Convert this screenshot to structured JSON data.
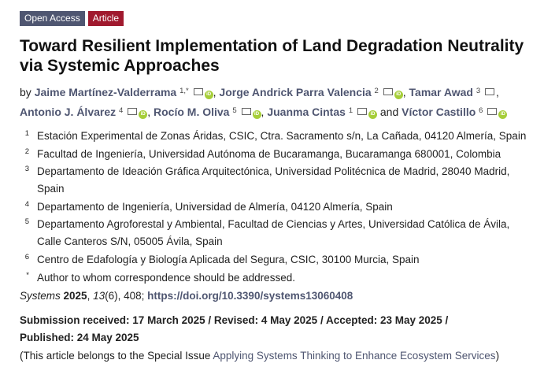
{
  "badges": {
    "open_access": "Open Access",
    "article": "Article"
  },
  "title": "Toward Resilient Implementation of Land Degradation Neutrality via Systemic Approaches",
  "authors_prefix": "by",
  "authors": [
    {
      "name": "Jaime Martínez-Valderrama",
      "sup": "1,*",
      "orcid": true
    },
    {
      "name": "Jorge Andrick Parra Valencia",
      "sup": "2",
      "orcid": true
    },
    {
      "name": "Tamar Awad",
      "sup": "3",
      "orcid": false
    },
    {
      "name": "Antonio J. Álvarez",
      "sup": "4",
      "orcid": true
    },
    {
      "name": "Rocío M. Oliva",
      "sup": "5",
      "orcid": true
    },
    {
      "name": "Juanma Cintas",
      "sup": "1",
      "orcid": true
    },
    {
      "name": "Víctor Castillo",
      "sup": "6",
      "orcid": true
    }
  ],
  "and_text": "and",
  "affiliations": [
    {
      "n": "1",
      "text": "Estación Experimental de Zonas Áridas, CSIC, Ctra. Sacramento s/n, La Cañada, 04120 Almería, Spain"
    },
    {
      "n": "2",
      "text": "Facultad de Ingeniería, Universidad Autónoma de Bucaramanga, Bucaramanga 680001, Colombia"
    },
    {
      "n": "3",
      "text": "Departamento de Ideación Gráfica Arquitectónica, Universidad Politécnica de Madrid, 28040 Madrid, Spain"
    },
    {
      "n": "4",
      "text": "Departamento de Ingeniería, Universidad de Almería, 04120 Almería, Spain"
    },
    {
      "n": "5",
      "text": "Departamento Agroforestal y Ambiental, Facultad de Ciencias y Artes, Universidad Católica de Ávila, Calle Canteros S/N, 05005 Ávila, Spain"
    },
    {
      "n": "6",
      "text": "Centro de Edafología y Biología Aplicada del Segura, CSIC, 30100 Murcia, Spain"
    },
    {
      "n": "*",
      "text": "Author to whom correspondence should be addressed."
    }
  ],
  "citation": {
    "journal": "Systems",
    "year": "2025",
    "volume": "13",
    "issue_pages": "(6), 408;",
    "doi": "https://doi.org/10.3390/systems13060408"
  },
  "dates": "Submission received: 17 March 2025 / Revised: 4 May 2025 / Accepted: 23 May 2025 / Published: 24 May 2025",
  "special_issue": {
    "prefix": "(This article belongs to the Special Issue ",
    "name": "Applying Systems Thinking to Enhance Ecosystem Services",
    "suffix": ")"
  },
  "colors": {
    "link": "#4f5671",
    "open_access": "#4f5671",
    "article": "#a0192e",
    "orcid": "#a6ce39"
  }
}
